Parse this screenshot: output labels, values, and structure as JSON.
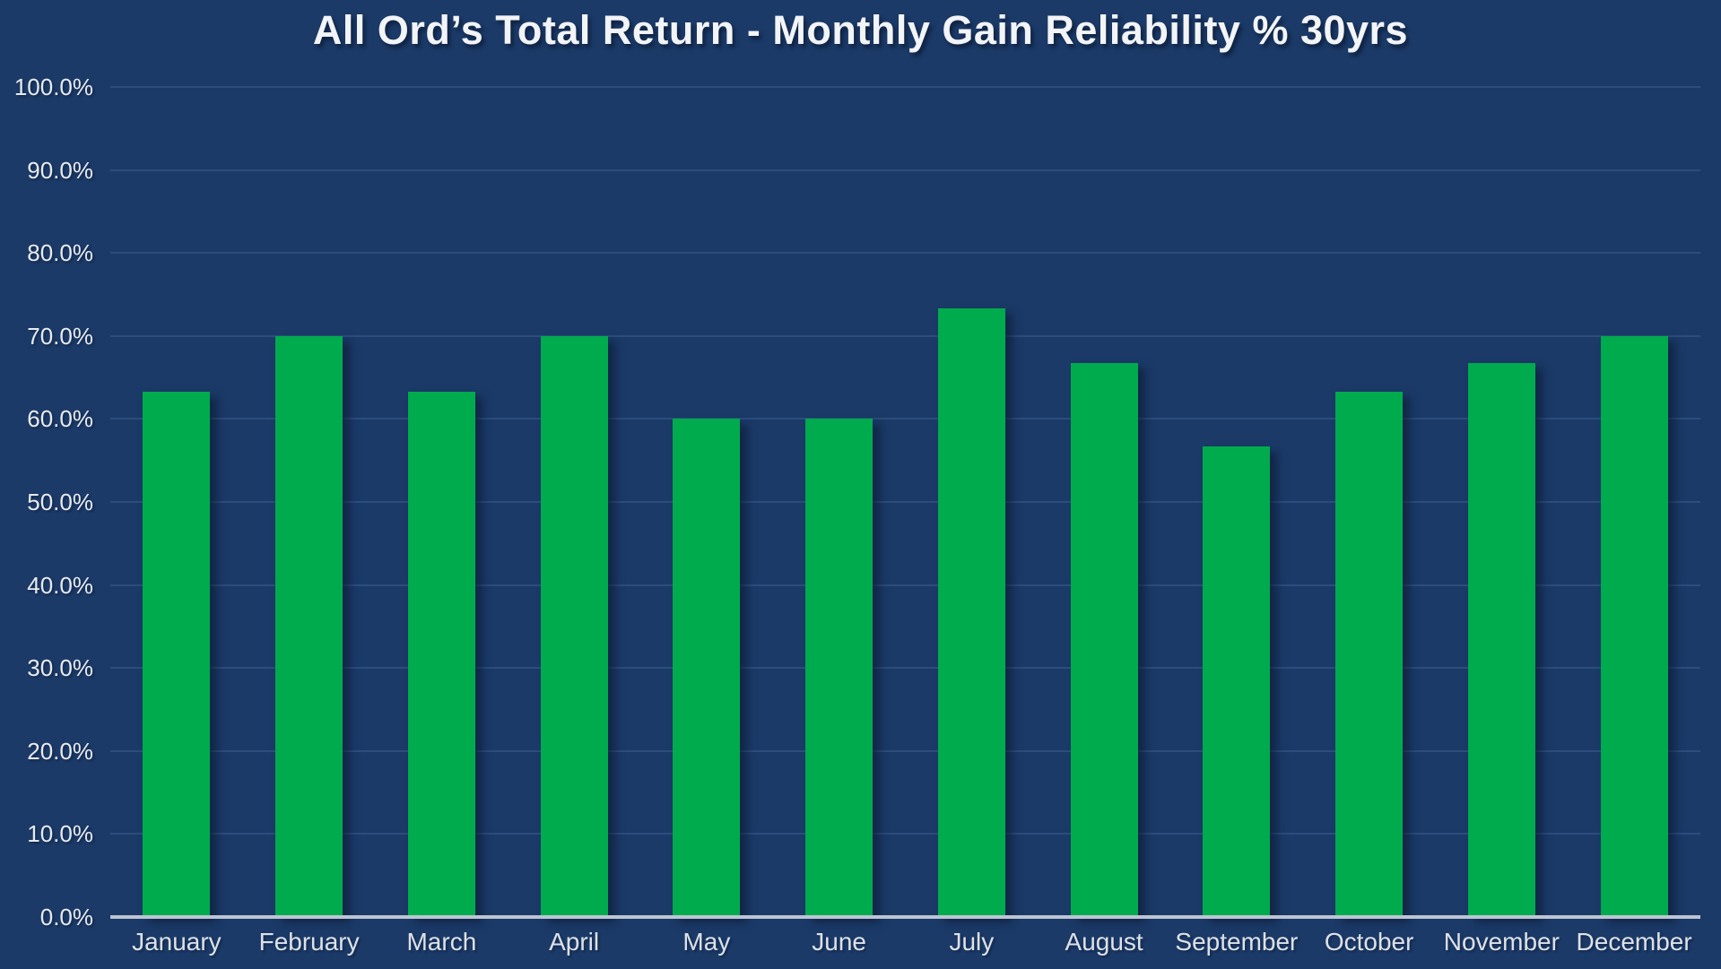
{
  "colors": {
    "background": "#1b3a68",
    "bar": "#00ab4e",
    "gridline": "#2d4d7d",
    "axis_line": "#bcc5d2",
    "title_text": "#f2f4f7",
    "y_tick_text": "#e8eaee",
    "x_tick_text": "#dde1e8"
  },
  "chart_data": {
    "type": "bar",
    "title": "All Ord’s Total Return - Monthly Gain Reliability % 30yrs",
    "xlabel": "",
    "ylabel": "",
    "categories": [
      "January",
      "February",
      "March",
      "April",
      "May",
      "June",
      "July",
      "August",
      "September",
      "October",
      "November",
      "December"
    ],
    "values": [
      63.3,
      70.0,
      63.3,
      70.0,
      60.0,
      60.0,
      73.3,
      66.7,
      56.7,
      63.3,
      66.7,
      70.0
    ],
    "ylim": [
      0,
      100
    ],
    "grid": true,
    "legend_position": "none",
    "y_ticks": [
      {
        "value": 0,
        "label": "0.0%"
      },
      {
        "value": 10,
        "label": "10.0%"
      },
      {
        "value": 20,
        "label": "20.0%"
      },
      {
        "value": 30,
        "label": "30.0%"
      },
      {
        "value": 40,
        "label": "40.0%"
      },
      {
        "value": 50,
        "label": "50.0%"
      },
      {
        "value": 60,
        "label": "60.0%"
      },
      {
        "value": 70,
        "label": "70.0%"
      },
      {
        "value": 80,
        "label": "80.0%"
      },
      {
        "value": 90,
        "label": "90.0%"
      },
      {
        "value": 100,
        "label": "100.0%"
      }
    ]
  }
}
